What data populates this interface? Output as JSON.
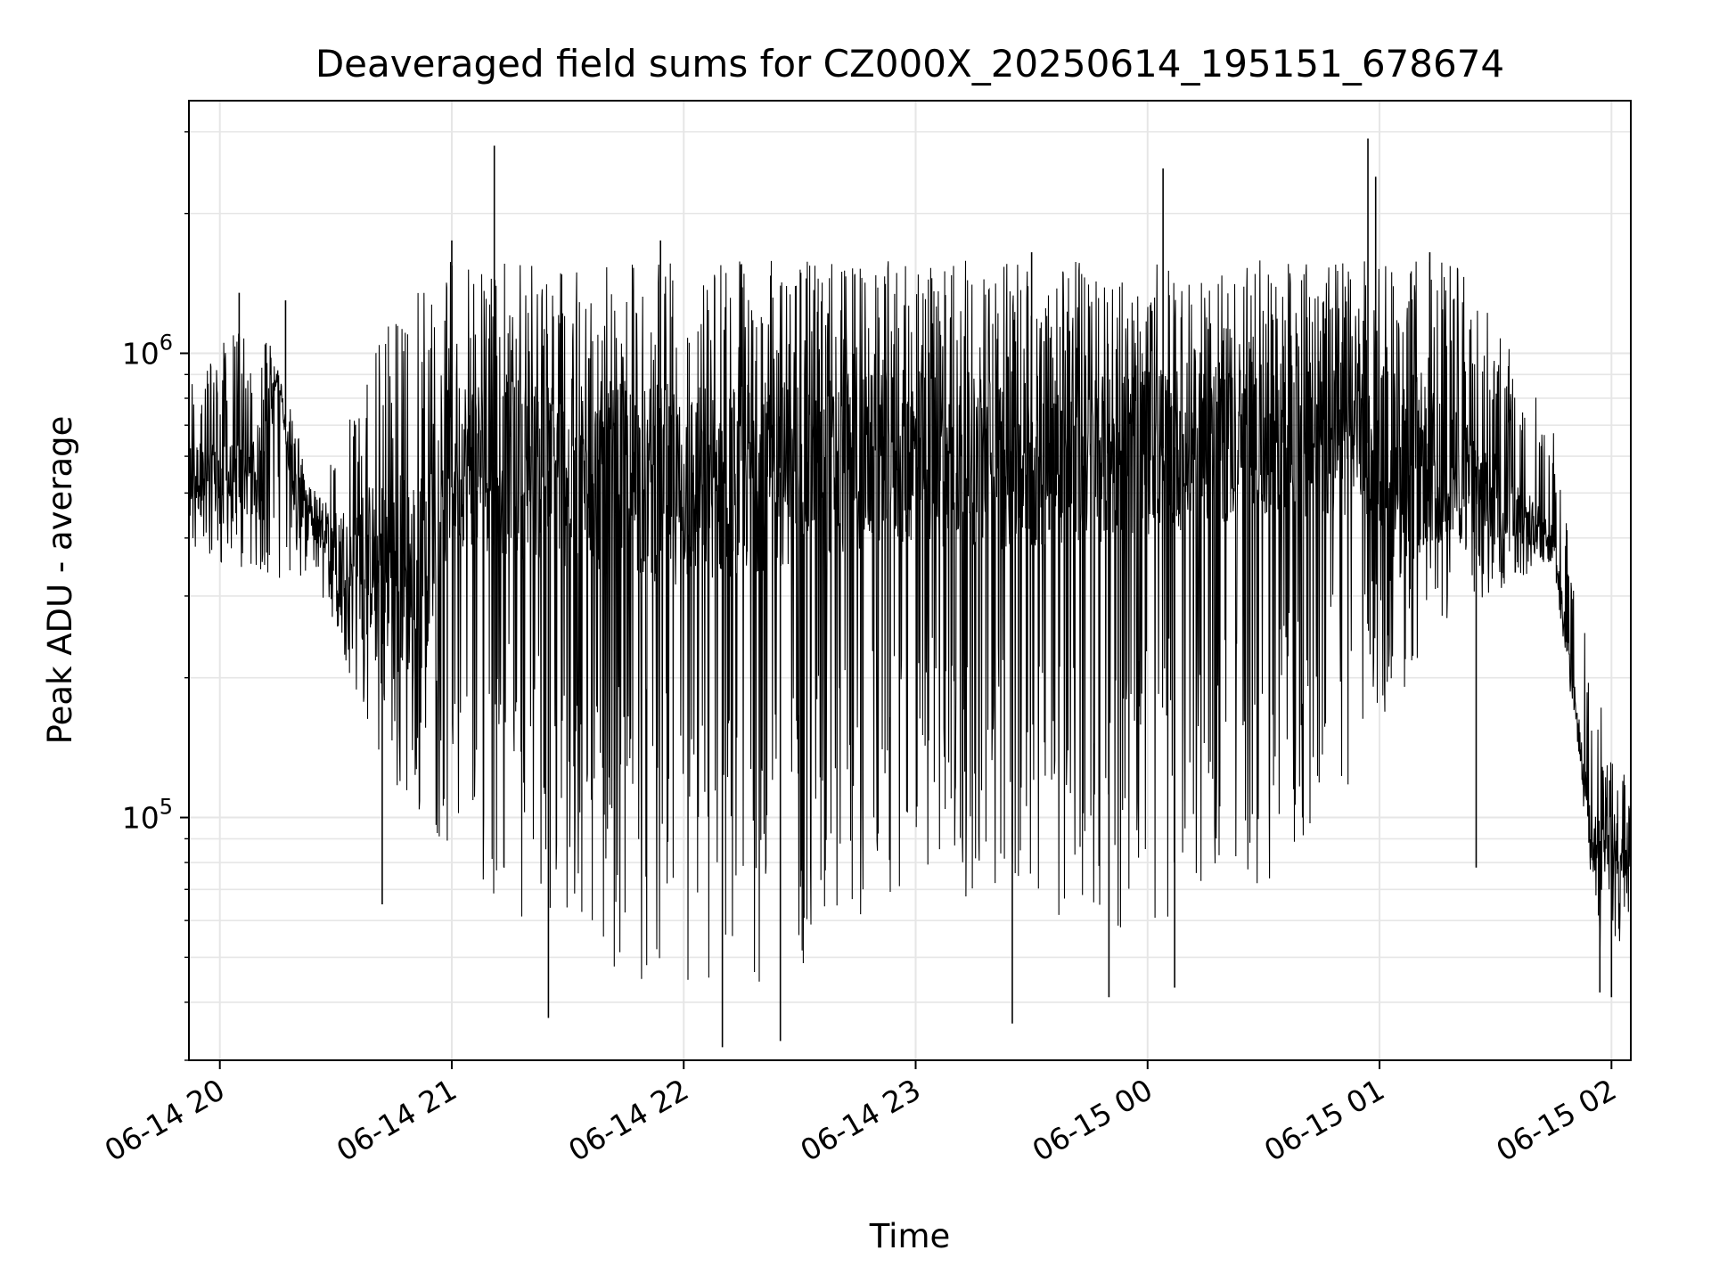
{
  "chart_data": {
    "type": "line",
    "title": "Deaveraged field sums for CZ000X_20250614_195151_678674",
    "xlabel": "Time",
    "ylabel": "Peak ADU - average",
    "x_axis": {
      "kind": "datetime",
      "range": [
        "2025-06-14 19:52",
        "2025-06-15 02:05"
      ],
      "ticks": [
        "06-14 20",
        "06-14 21",
        "06-14 22",
        "06-14 23",
        "06-15 00",
        "06-15 01",
        "06-15 02"
      ],
      "tick_times": [
        "2025-06-14 20:00",
        "2025-06-14 21:00",
        "2025-06-14 22:00",
        "2025-06-14 23:00",
        "2025-06-15 00:00",
        "2025-06-15 01:00",
        "2025-06-15 02:00"
      ]
    },
    "y_axis": {
      "scale": "log",
      "range": [
        30000,
        3500000
      ],
      "ticks": [
        {
          "base": "10",
          "exp": "5"
        },
        {
          "base": "10",
          "exp": "6"
        }
      ],
      "tick_values": [
        100000,
        1000000
      ]
    },
    "grid": true,
    "line_color": "#000000",
    "series": [
      {
        "points": [
          [
            "2025-06-14 19:52",
            550000
          ],
          [
            "2025-06-14 20:00",
            520000
          ],
          [
            "2025-06-14 20:10",
            560000
          ],
          [
            "2025-06-14 20:15",
            900000
          ],
          [
            "2025-06-14 20:20",
            470000
          ],
          [
            "2025-06-14 20:30",
            380000
          ],
          [
            "2025-06-14 20:40",
            360000
          ],
          [
            "2025-06-14 20:50",
            330000
          ],
          [
            "2025-06-14 21:00",
            600000
          ],
          [
            "2025-06-14 21:30",
            550000
          ],
          [
            "2025-06-14 22:00",
            520000
          ],
          [
            "2025-06-14 22:30",
            560000
          ],
          [
            "2025-06-14 23:00",
            600000
          ],
          [
            "2025-06-14 23:30",
            580000
          ],
          [
            "2025-06-15 00:00",
            620000
          ],
          [
            "2025-06-15 00:30",
            650000
          ],
          [
            "2025-06-15 01:00",
            640000
          ],
          [
            "2025-06-15 01:30",
            500000
          ],
          [
            "2025-06-15 01:45",
            400000
          ],
          [
            "2025-06-15 01:55",
            90000
          ],
          [
            "2025-06-15 02:05",
            85000
          ]
        ],
        "peaks": [
          [
            "2025-06-14 20:05",
            1350000
          ],
          [
            "2025-06-14 20:17",
            1300000
          ],
          [
            "2025-06-14 21:00",
            1750000
          ],
          [
            "2025-06-14 21:11",
            2800000
          ],
          [
            "2025-06-14 21:54",
            1750000
          ],
          [
            "2025-06-14 23:30",
            1650000
          ],
          [
            "2025-06-15 00:04",
            2500000
          ],
          [
            "2025-06-15 00:57",
            2900000
          ],
          [
            "2025-06-15 00:59",
            2400000
          ],
          [
            "2025-06-15 01:13",
            1650000
          ]
        ],
        "troughs": [
          [
            "2025-06-14 20:42",
            65000
          ],
          [
            "2025-06-14 21:25",
            37000
          ],
          [
            "2025-06-14 22:10",
            32000
          ],
          [
            "2025-06-14 22:25",
            33000
          ],
          [
            "2025-06-14 23:25",
            36000
          ],
          [
            "2025-06-14 23:50",
            41000
          ],
          [
            "2025-06-15 00:07",
            43000
          ],
          [
            "2025-06-15 01:25",
            78000
          ],
          [
            "2025-06-15 01:57",
            42000
          ],
          [
            "2025-06-15 02:00",
            41000
          ]
        ]
      }
    ]
  }
}
